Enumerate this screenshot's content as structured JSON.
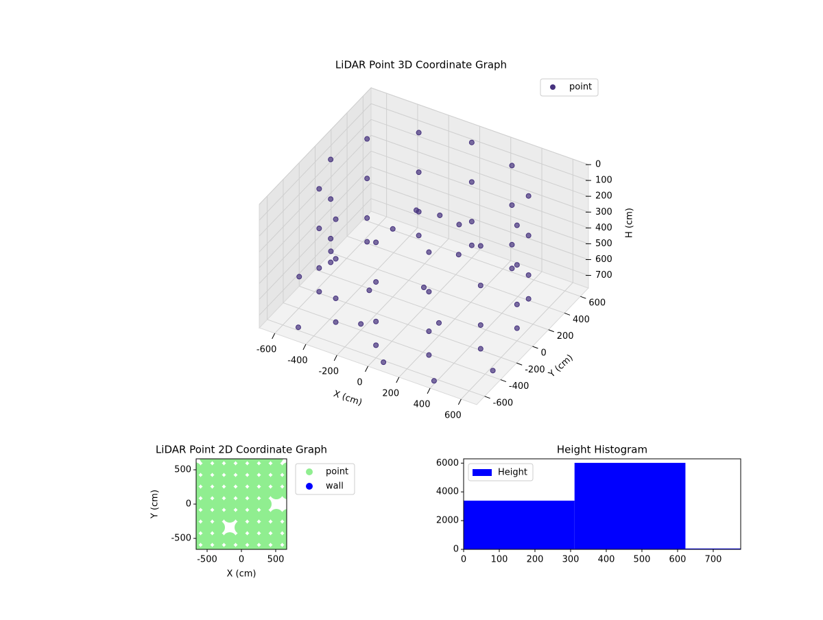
{
  "chart_data": [
    {
      "type": "scatter3d",
      "title": "LiDAR Point 3D Coordinate Graph",
      "xlabel": "X (cm)",
      "ylabel": "Y (cm)",
      "zlabel": "H (cm)",
      "xlim": [
        -700,
        700
      ],
      "ylim": [
        -700,
        700
      ],
      "zlim": [
        0,
        780
      ],
      "z_inverted": true,
      "xticks": [
        -600,
        -400,
        -200,
        0,
        200,
        400,
        600
      ],
      "yticks": [
        -600,
        -400,
        -200,
        0,
        200,
        400,
        600
      ],
      "zticks": [
        0,
        100,
        200,
        300,
        400,
        500,
        600,
        700
      ],
      "grid": true,
      "legend": "upper right",
      "series": [
        {
          "name": "point",
          "color": "#46327e",
          "x": [
            600,
            520,
            300,
            0,
            -300,
            -520,
            -600,
            -520,
            -300,
            0,
            300,
            520,
            600,
            520,
            300,
            0,
            -300,
            -520,
            -600,
            -520,
            -300,
            0,
            300,
            520,
            600,
            520,
            300,
            0,
            -300,
            -520,
            -600,
            -520,
            -300,
            0,
            300,
            520,
            600,
            520,
            300,
            0,
            -300,
            -520,
            -600,
            -520,
            -300,
            0,
            300,
            520,
            -700,
            -500,
            -200,
            100,
            400,
            650,
            -650,
            0,
            200,
            -300,
            -100,
            0,
            150,
            -200,
            250
          ],
          "y": [
            0,
            300,
            520,
            600,
            520,
            300,
            0,
            -300,
            -520,
            -600,
            -520,
            -300,
            0,
            300,
            520,
            600,
            520,
            300,
            0,
            -300,
            -520,
            -600,
            -520,
            -300,
            0,
            300,
            520,
            600,
            520,
            300,
            0,
            -300,
            -520,
            -600,
            -520,
            -300,
            0,
            300,
            520,
            600,
            520,
            300,
            0,
            -300,
            -520,
            -600,
            -520,
            -300,
            -200,
            -600,
            -400,
            -700,
            -650,
            -400,
            100,
            0,
            -200,
            -100,
            100,
            200,
            150,
            0,
            -50
          ],
          "z": [
            50,
            50,
            50,
            50,
            50,
            50,
            50,
            50,
            50,
            50,
            50,
            50,
            300,
            300,
            300,
            300,
            300,
            300,
            300,
            300,
            300,
            300,
            300,
            300,
            550,
            550,
            550,
            550,
            550,
            550,
            550,
            550,
            550,
            550,
            550,
            550,
            700,
            700,
            700,
            700,
            700,
            700,
            700,
            700,
            700,
            700,
            700,
            700,
            720,
            760,
            740,
            720,
            760,
            740,
            700,
            650,
            700,
            720,
            250,
            300,
            280,
            350,
            330
          ]
        }
      ]
    },
    {
      "type": "scatter",
      "title": "LiDAR Point 2D Coordinate Graph",
      "xlabel": "X (cm)",
      "ylabel": "Y (cm)",
      "xlim": [
        -660,
        660
      ],
      "ylim": [
        -660,
        660
      ],
      "xticks": [
        -500,
        0,
        500
      ],
      "yticks": [
        -500,
        0,
        500
      ],
      "legend": "outside right",
      "series": [
        {
          "name": "point",
          "color": "#90ee90",
          "x": [
            -510,
            -340,
            -170,
            0,
            170,
            340,
            510,
            -680,
            -510,
            -340,
            -170,
            0,
            170,
            340,
            510,
            680,
            -680,
            -510,
            -340,
            -170,
            0,
            170,
            340,
            510,
            680,
            -680,
            -510,
            -340,
            -170,
            0,
            170,
            340,
            510,
            680,
            -680,
            -510,
            -340,
            -170,
            0,
            170,
            340,
            -680,
            -510,
            -340,
            -170,
            0,
            170,
            340,
            510,
            680,
            -680,
            -510,
            -340,
            0,
            170,
            340,
            510,
            680,
            -680,
            -510,
            -340,
            -170,
            0,
            170,
            340,
            510,
            680,
            -680,
            -510,
            -340,
            -170,
            0,
            170,
            340,
            510,
            680
          ],
          "y": [
            680,
            680,
            680,
            680,
            680,
            680,
            680,
            510,
            510,
            510,
            510,
            510,
            510,
            510,
            510,
            510,
            340,
            340,
            340,
            340,
            340,
            340,
            340,
            340,
            340,
            170,
            170,
            170,
            170,
            170,
            170,
            170,
            170,
            170,
            0,
            0,
            0,
            0,
            0,
            0,
            0,
            -170,
            -170,
            -170,
            -170,
            -170,
            -170,
            -170,
            -170,
            -170,
            -340,
            -340,
            -340,
            -340,
            -340,
            -340,
            -340,
            -340,
            -510,
            -510,
            -510,
            -510,
            -510,
            -510,
            -510,
            -510,
            -510,
            -680,
            -680,
            -680,
            -680,
            -680,
            -680,
            -680,
            -680,
            -680
          ]
        },
        {
          "name": "wall",
          "color": "#0000ff",
          "x": [],
          "y": []
        }
      ]
    },
    {
      "type": "histogram",
      "title": "Height Histogram",
      "xlim": [
        0,
        777
      ],
      "ylim": [
        0,
        6300
      ],
      "xticks": [
        0,
        100,
        200,
        300,
        400,
        500,
        600,
        700
      ],
      "yticks": [
        0,
        2000,
        4000,
        6000
      ],
      "legend": "upper left",
      "series": [
        {
          "name": "Height",
          "color": "#0000ff",
          "bins": [
            0,
            311,
            622,
            777
          ],
          "values": [
            3390,
            6020,
            60
          ]
        }
      ]
    }
  ]
}
